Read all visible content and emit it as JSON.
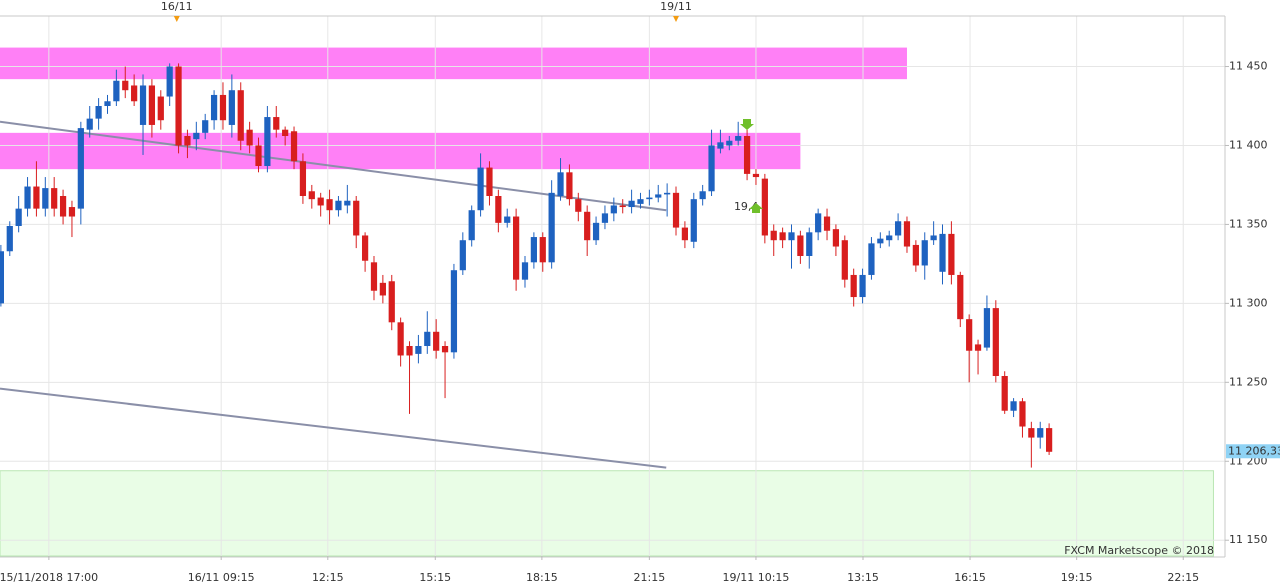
{
  "chart_data": {
    "type": "candlestick",
    "credit": "FXCM Marketscope © 2018",
    "annotation": {
      "text": "19,4",
      "x": 83.9,
      "y": 11361
    },
    "xlim": [
      -0.1,
      137.8
    ],
    "ylim": [
      11140,
      11482
    ],
    "xticks": [
      {
        "value": 5.4,
        "label": "15/11/2018 17:00"
      },
      {
        "value": 24.8,
        "label": "16/11 09:15"
      },
      {
        "value": 36.8,
        "label": "12:15"
      },
      {
        "value": 48.9,
        "label": "15:15"
      },
      {
        "value": 60.9,
        "label": "18:15"
      },
      {
        "value": 73.0,
        "label": "21:15"
      },
      {
        "value": 85.0,
        "label": "19/11 10:15"
      },
      {
        "value": 97.05,
        "label": "13:15"
      },
      {
        "value": 109.1,
        "label": "16:15"
      },
      {
        "value": 121.1,
        "label": "19:15"
      },
      {
        "value": 133.1,
        "label": "22:15"
      }
    ],
    "top_markers": [
      {
        "value": 19.8,
        "label": "16/11"
      },
      {
        "value": 76.0,
        "label": "19/11"
      }
    ],
    "yticks": [
      {
        "value": 11150,
        "label": "11 150"
      },
      {
        "value": 11200,
        "label": "11 200"
      },
      {
        "value": 11250,
        "label": "11 250"
      },
      {
        "value": 11300,
        "label": "11 300"
      },
      {
        "value": 11350,
        "label": "11 350"
      },
      {
        "value": 11400,
        "label": "11 400"
      },
      {
        "value": 11450,
        "label": "11 450"
      }
    ],
    "grid": true,
    "current_price": {
      "value": 11206.33,
      "label": "11 206,33"
    },
    "up_color": "#1e62c0",
    "down_color": "#d81e1e",
    "zones": [
      {
        "color": "#ff80f6",
        "x": [
          -0.1,
          102.0
        ],
        "y": [
          11442,
          11462
        ]
      },
      {
        "color": "#ff80f6",
        "x": [
          -0.1,
          90.0
        ],
        "y": [
          11385,
          11408
        ]
      },
      {
        "color": "#e9fde6",
        "x": [
          -0.1,
          136.5
        ],
        "y": [
          11140,
          11194
        ]
      }
    ],
    "trend_lines": [
      {
        "color": "#8a8fa8",
        "x": [
          -0.1,
          74.9
        ],
        "y": [
          11415,
          11359
        ]
      },
      {
        "color": "#8a8fa8",
        "x": [
          -0.1,
          74.9
        ],
        "y": [
          11246,
          11196
        ]
      }
    ],
    "series": [
      {
        "open": [
          11300,
          11333,
          11349,
          11360,
          11374,
          11360,
          11373,
          11368,
          11361,
          11360,
          11410,
          11417,
          11425,
          11428,
          11441,
          11438,
          11413,
          11438,
          11431,
          11431,
          11450,
          11406,
          11404,
          11408,
          11416,
          11432,
          11413,
          11435,
          11410,
          11400,
          11387,
          11418,
          11410,
          11409,
          11390,
          11371,
          11367,
          11366,
          11359,
          11362,
          11365,
          11343,
          11326,
          11313,
          11314,
          11288,
          11273,
          11268,
          11273,
          11282,
          11273,
          11269,
          11321,
          11340,
          11359,
          11386,
          11368,
          11351,
          11355,
          11315,
          11326,
          11342,
          11326,
          11368,
          11383,
          11366,
          11358,
          11340,
          11351,
          11357,
          11362,
          11361,
          11363,
          11366,
          11367,
          11369,
          11370,
          11348,
          11339,
          11366,
          11371,
          11398,
          11400,
          11403,
          11406,
          11382,
          11379,
          11346,
          11345,
          11340,
          11343,
          11330,
          11345,
          11355,
          11347,
          11340,
          11318,
          11304,
          11318,
          11338,
          11340,
          11343,
          11352,
          11337,
          11324,
          11340,
          11320,
          11344,
          11318,
          11290,
          11274,
          11272,
          11297,
          11254,
          11232,
          11238,
          11221,
          11215,
          11221
        ],
        "high": [
          11337,
          11352,
          11368,
          11380,
          11390,
          11380,
          11380,
          11372,
          11365,
          11415,
          11425,
          11430,
          11432,
          11448,
          11450,
          11445,
          11445,
          11442,
          11435,
          11452,
          11452,
          11410,
          11415,
          11420,
          11435,
          11440,
          11445,
          11440,
          11415,
          11405,
          11425,
          11425,
          11412,
          11412,
          11395,
          11375,
          11370,
          11372,
          11368,
          11375,
          11368,
          11345,
          11330,
          11318,
          11318,
          11291,
          11276,
          11280,
          11295,
          11290,
          11276,
          11325,
          11345,
          11362,
          11395,
          11390,
          11372,
          11360,
          11360,
          11330,
          11345,
          11345,
          11378,
          11392,
          11388,
          11370,
          11362,
          11355,
          11362,
          11367,
          11366,
          11372,
          11370,
          11372,
          11375,
          11376,
          11374,
          11352,
          11370,
          11375,
          11410,
          11410,
          11406,
          11415,
          11410,
          11385,
          11382,
          11350,
          11348,
          11350,
          11346,
          11348,
          11360,
          11360,
          11350,
          11343,
          11322,
          11322,
          11342,
          11345,
          11346,
          11357,
          11355,
          11340,
          11345,
          11352,
          11350,
          11352,
          11320,
          11293,
          11277,
          11305,
          11302,
          11257,
          11240,
          11240,
          11225,
          11225,
          11224
        ],
        "low": [
          11298,
          11330,
          11345,
          11355,
          11355,
          11355,
          11355,
          11350,
          11342,
          11350,
          11405,
          11410,
          11420,
          11425,
          11430,
          11425,
          11394,
          11405,
          11410,
          11425,
          11395,
          11392,
          11397,
          11404,
          11410,
          11410,
          11405,
          11397,
          11395,
          11383,
          11383,
          11405,
          11400,
          11385,
          11363,
          11360,
          11355,
          11350,
          11355,
          11357,
          11335,
          11320,
          11302,
          11300,
          11283,
          11260,
          11230,
          11262,
          11268,
          11265,
          11240,
          11265,
          11318,
          11336,
          11355,
          11362,
          11345,
          11348,
          11308,
          11310,
          11322,
          11320,
          11322,
          11365,
          11362,
          11352,
          11330,
          11337,
          11347,
          11352,
          11357,
          11357,
          11360,
          11362,
          11364,
          11355,
          11343,
          11335,
          11335,
          11362,
          11368,
          11395,
          11397,
          11400,
          11378,
          11375,
          11338,
          11330,
          11335,
          11322,
          11325,
          11322,
          11340,
          11340,
          11330,
          11310,
          11298,
          11300,
          11315,
          11335,
          11336,
          11340,
          11332,
          11320,
          11315,
          11337,
          11312,
          11312,
          11285,
          11250,
          11255,
          11270,
          11250,
          11230,
          11228,
          11215,
          11196,
          11208,
          11204
        ],
        "close": [
          11333,
          11349,
          11360,
          11374,
          11360,
          11373,
          11360,
          11355,
          11355,
          11411,
          11417,
          11425,
          11428,
          11441,
          11435,
          11428,
          11438,
          11413,
          11416,
          11450,
          11400,
          11400,
          11408,
          11416,
          11432,
          11416,
          11435,
          11403,
          11400,
          11387,
          11418,
          11410,
          11406,
          11390,
          11368,
          11366,
          11362,
          11359,
          11365,
          11365,
          11343,
          11327,
          11308,
          11305,
          11288,
          11267,
          11267,
          11273,
          11282,
          11270,
          11269,
          11321,
          11340,
          11359,
          11386,
          11368,
          11351,
          11355,
          11315,
          11326,
          11342,
          11326,
          11370,
          11383,
          11366,
          11358,
          11340,
          11351,
          11357,
          11362,
          11361,
          11365,
          11366,
          11367,
          11369,
          11370,
          11348,
          11340,
          11366,
          11371,
          11400,
          11402,
          11403,
          11406,
          11382,
          11380,
          11343,
          11340,
          11340,
          11345,
          11330,
          11345,
          11357,
          11346,
          11336,
          11315,
          11304,
          11318,
          11338,
          11341,
          11343,
          11352,
          11336,
          11324,
          11340,
          11343,
          11344,
          11318,
          11290,
          11270,
          11270,
          11297,
          11254,
          11232,
          11238,
          11222,
          11215,
          11221,
          11206
        ]
      }
    ]
  }
}
